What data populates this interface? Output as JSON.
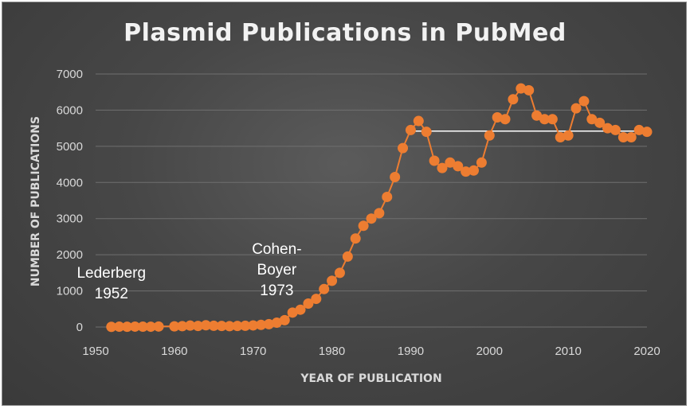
{
  "chart_data": {
    "type": "line",
    "title": "Plasmid Publications in PubMed",
    "xlabel": "YEAR OF PUBLICATION",
    "ylabel": "NUMBER OF PUBLICATIONS",
    "xlim": [
      1950,
      2020
    ],
    "ylim": [
      0,
      7000
    ],
    "x_ticks": [
      "1950",
      "1960",
      "1970",
      "1980",
      "1990",
      "2000",
      "2010",
      "2020"
    ],
    "y_ticks": [
      "0",
      "1000",
      "2000",
      "3000",
      "4000",
      "5000",
      "6000",
      "7000"
    ],
    "grid": "horizontal",
    "legend": "none",
    "colors": {
      "series": "#ed7d31",
      "reference_line": "#ffffff",
      "background": "#404040",
      "text": "#d9d9d9"
    },
    "series": [
      {
        "x": [
          1952,
          1953,
          1954,
          1955,
          1956,
          1957,
          1958,
          1960,
          1961,
          1962,
          1963,
          1964,
          1965,
          1966,
          1967,
          1968,
          1969,
          1970,
          1971,
          1972,
          1973,
          1974,
          1975,
          1976,
          1977,
          1978,
          1979,
          1980,
          1981,
          1982,
          1983,
          1984,
          1985,
          1986,
          1987,
          1988,
          1989,
          1990,
          1991,
          1992,
          1993,
          1994,
          1995,
          1996,
          1997,
          1998,
          1999,
          2000,
          2001,
          2002,
          2003,
          2004,
          2005,
          2006,
          2007,
          2008,
          2009,
          2010,
          2011,
          2012,
          2013,
          2014,
          2015,
          2016,
          2017,
          2018,
          2019,
          2020
        ],
        "y": [
          5,
          10,
          8,
          12,
          10,
          9,
          15,
          20,
          25,
          40,
          30,
          50,
          35,
          30,
          25,
          30,
          35,
          45,
          60,
          80,
          120,
          190,
          400,
          480,
          650,
          780,
          1050,
          1280,
          1500,
          1950,
          2450,
          2800,
          3000,
          3150,
          3600,
          4150,
          4950,
          5450,
          5700,
          5400,
          4600,
          4400,
          4550,
          4450,
          4300,
          4330,
          4550,
          5300,
          5800,
          5750,
          6300,
          6600,
          6550,
          5850,
          5750,
          5750,
          5250,
          5300,
          6050,
          6250,
          5750,
          5650,
          5500,
          5450,
          5250,
          5250,
          5450,
          5400
        ]
      }
    ],
    "reference_line": {
      "y": 5420,
      "x_start": 1990,
      "x_end": 2020
    },
    "annotations": [
      {
        "lines": [
          "Lederberg",
          "1952"
        ],
        "x": 1952
      },
      {
        "lines": [
          "Cohen-",
          "Boyer",
          "1973"
        ],
        "x": 1973
      }
    ]
  }
}
